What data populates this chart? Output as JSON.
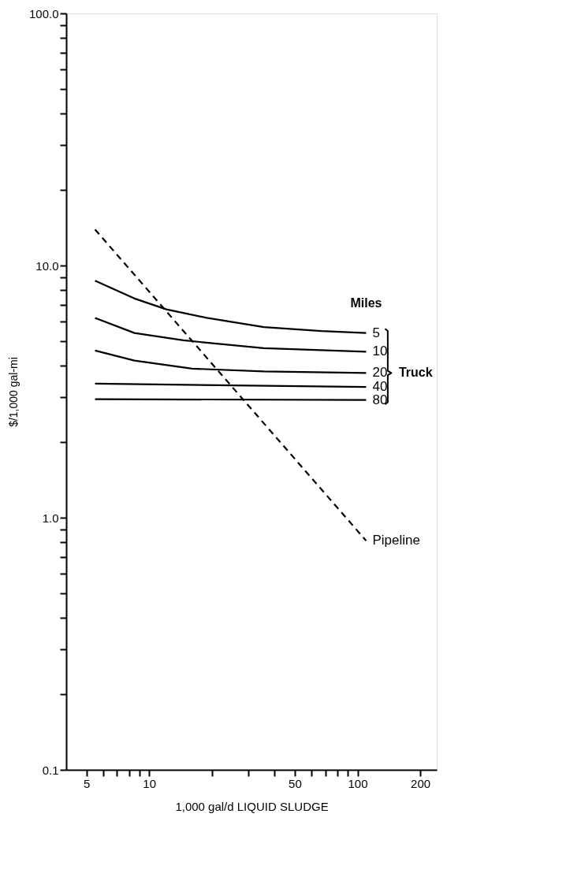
{
  "chart_data": {
    "type": "line",
    "xlabel": "1,000 gal/d LIQUID SLUDGE",
    "ylabel": "$/1,000 gal-mi",
    "log": "xy",
    "grid": false,
    "legend": false,
    "marker": "none",
    "xlim": [
      4,
      240
    ],
    "ylim": [
      0.1,
      100
    ],
    "xticks": [
      5,
      {
        "value": 6,
        "label": null
      },
      {
        "value": 7,
        "label": null
      },
      {
        "value": 8,
        "label": null
      },
      {
        "value": 9,
        "label": null
      },
      {
        "value": 10,
        "label": "10"
      },
      {
        "value": 20,
        "label": null
      },
      {
        "value": 30,
        "label": null
      },
      {
        "value": 40,
        "label": null
      },
      50,
      {
        "value": 60,
        "label": null
      },
      {
        "value": 70,
        "label": null
      },
      {
        "value": 80,
        "label": null
      },
      {
        "value": 90,
        "label": null
      },
      100,
      200
    ],
    "yticks": [
      0.1,
      {
        "value": 0.2,
        "label": null
      },
      {
        "value": 0.3,
        "label": null
      },
      {
        "value": 0.4,
        "label": null
      },
      {
        "value": 0.5,
        "label": null
      },
      {
        "value": 0.6,
        "label": null
      },
      {
        "value": 0.7,
        "label": null
      },
      {
        "value": 0.8,
        "label": null
      },
      {
        "value": 0.9,
        "label": null
      },
      {
        "value": 1,
        "label": "1.0"
      },
      {
        "value": 2,
        "label": null
      },
      {
        "value": 3,
        "label": null
      },
      {
        "value": 4,
        "label": null
      },
      {
        "value": 5,
        "label": null
      },
      {
        "value": 6,
        "label": null
      },
      {
        "value": 7,
        "label": null
      },
      {
        "value": 8,
        "label": null
      },
      {
        "value": 9,
        "label": null
      },
      {
        "value": 10,
        "label": "10.0"
      },
      {
        "value": 20,
        "label": null
      },
      {
        "value": 30,
        "label": null
      },
      {
        "value": 40,
        "label": null
      },
      {
        "value": 50,
        "label": null
      },
      {
        "value": 60,
        "label": null
      },
      {
        "value": 70,
        "label": null
      },
      {
        "value": 80,
        "label": null
      },
      {
        "value": 90,
        "label": null
      },
      {
        "value": 100,
        "label": "100.0"
      }
    ],
    "annotations": [
      "Miles",
      "Truck"
    ],
    "series": [
      {
        "name": "5",
        "color": "#000000",
        "line_style": "solid",
        "x": [
          5.5,
          8.5,
          12.1,
          18.9,
          35.5,
          67,
          110
        ],
        "values": [
          8.7,
          7.4,
          6.7,
          6.2,
          5.7,
          5.5,
          5.4
        ]
      },
      {
        "name": "10",
        "color": "#000000",
        "line_style": "solid",
        "x": [
          5.5,
          8.5,
          14.6,
          35.5,
          110
        ],
        "values": [
          6.2,
          5.4,
          5.05,
          4.7,
          4.55
        ]
      },
      {
        "name": "20",
        "color": "#000000",
        "line_style": "solid",
        "x": [
          5.5,
          8.5,
          16.1,
          35.5,
          110
        ],
        "values": [
          4.6,
          4.2,
          3.9,
          3.8,
          3.75
        ]
      },
      {
        "name": "40",
        "color": "#000000",
        "line_style": "solid",
        "x": [
          5.5,
          110
        ],
        "values": [
          3.4,
          3.3
        ]
      },
      {
        "name": "80",
        "color": "#000000",
        "line_style": "solid",
        "x": [
          5.5,
          110
        ],
        "values": [
          2.95,
          2.93
        ]
      },
      {
        "name": "Pipeline",
        "color": "#000000",
        "line_style": "dashed",
        "x": [
          5.5,
          110
        ],
        "values": [
          13.9,
          0.81
        ]
      }
    ]
  }
}
